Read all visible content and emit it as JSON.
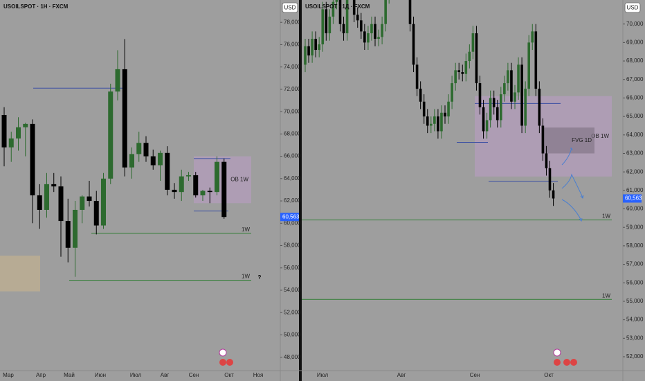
{
  "chart_data": [
    {
      "type": "candlestick",
      "title": "USOILSPOT · 1Н · FXCM",
      "currency": "USD",
      "xlabels": [
        "Мар",
        "Апр",
        "Май",
        "Июн",
        "Июл",
        "Авг",
        "Сен",
        "Окт",
        "Ноя"
      ],
      "open": [
        69.7,
        66.8,
        67.6,
        68.6,
        68.9,
        62.5,
        61.2,
        63.5,
        63.3,
        60.2,
        57.8,
        61.2,
        62.4,
        62.0,
        59.8,
        64.0,
        71.8,
        73.8,
        65.0,
        66.2,
        67.2,
        66.0,
        65.2,
        66.3,
        63.0,
        62.8,
        64.2,
        64.3,
        62.5,
        62.9,
        62.8,
        65.5
      ],
      "high": [
        70.4,
        68.2,
        69.5,
        69.0,
        69.3,
        63.5,
        64.5,
        64.5,
        64.2,
        62.2,
        62.0,
        62.5,
        63.8,
        62.9,
        64.5,
        72.5,
        75.5,
        76.5,
        66.8,
        68.2,
        67.8,
        66.6,
        66.5,
        66.9,
        63.6,
        64.8,
        64.6,
        64.6,
        63.0,
        63.2,
        66.0,
        65.8
      ],
      "low": [
        65.1,
        65.5,
        66.5,
        66.0,
        60.0,
        59.5,
        60.5,
        62.8,
        57.0,
        56.5,
        55.2,
        60.0,
        61.5,
        59.0,
        59.5,
        63.5,
        71.0,
        64.2,
        64.0,
        65.5,
        65.5,
        64.8,
        63.8,
        62.5,
        62.2,
        62.0,
        63.8,
        62.3,
        62.0,
        61.8,
        62.5,
        60.4
      ],
      "close": [
        66.8,
        67.6,
        68.6,
        68.9,
        62.5,
        61.2,
        63.5,
        63.3,
        60.2,
        57.8,
        61.2,
        62.4,
        62.0,
        59.8,
        64.0,
        71.8,
        73.8,
        65.0,
        66.2,
        67.2,
        66.0,
        65.2,
        66.3,
        63.0,
        62.8,
        64.2,
        64.3,
        62.5,
        62.9,
        62.8,
        65.5,
        60.563
      ],
      "up_color": "#2d6a2f",
      "down_color": "#000000",
      "ylim": [
        46.8,
        80
      ],
      "yticks": [
        {
          "value": 48,
          "label": "48,000"
        },
        {
          "value": 50,
          "label": "50,000"
        },
        {
          "value": 52,
          "label": "52,000"
        },
        {
          "value": 54,
          "label": "54,000"
        },
        {
          "value": 56,
          "label": "56,000"
        },
        {
          "value": 58,
          "label": "58,000"
        },
        {
          "value": 60,
          "label": "60,000"
        },
        {
          "value": 62,
          "label": "62,000"
        },
        {
          "value": 64,
          "label": "64,000"
        },
        {
          "value": 66,
          "label": "66,000"
        },
        {
          "value": 68,
          "label": "68,000"
        },
        {
          "value": 70,
          "label": "70,000"
        },
        {
          "value": 72,
          "label": "72,000"
        },
        {
          "value": 74,
          "label": "74,000"
        },
        {
          "value": 76,
          "label": "76,000"
        },
        {
          "value": 78,
          "label": "78,000"
        }
      ],
      "last_price": {
        "value": 60.563,
        "label": "60,563"
      },
      "levels": [
        {
          "value": 72.1,
          "color": "#3b4fa3"
        },
        {
          "value": 65.8,
          "color": "#3b4fa3"
        },
        {
          "value": 61.1,
          "color": "#3b4fa3"
        },
        {
          "value": 59.1,
          "color": "#2e7d32",
          "label": "1W"
        },
        {
          "value": 54.9,
          "color": "#2e7d32",
          "label": "1W"
        }
      ],
      "zones": [
        {
          "top": 66.0,
          "bottom": 61.8,
          "color": "#b99cc3",
          "label": "OB 1W"
        },
        {
          "top": 57.1,
          "bottom": 53.9,
          "color": "#c8b48e"
        }
      ],
      "annotation": "?"
    },
    {
      "type": "candlestick",
      "title": "USOILSPOT · 1Д · FXCM",
      "currency": "USD",
      "xlabels": [
        "Июл",
        "Авг",
        "Сен",
        "Окт"
      ],
      "open": [
        67.8,
        68.8,
        68.3,
        69.2,
        68.6,
        68.9,
        70.8,
        69.5,
        70.4,
        71.2,
        72.0,
        70.0,
        69.5,
        71.8,
        72.6,
        70.5,
        70.2,
        69.6,
        69.0,
        69.5,
        70.0,
        69.2,
        69.3,
        70.0,
        71.5,
        72.0,
        75.0,
        76.0,
        77.2,
        76.5,
        73.0,
        70.0,
        67.8,
        66.5,
        65.8,
        65.0,
        64.5,
        64.6,
        65.0,
        64.2,
        65.2,
        65.0,
        65.8,
        66.8,
        67.5,
        67.4,
        67.3,
        68.0,
        68.5,
        69.5,
        66.8,
        65.5,
        64.2,
        64.8,
        66.0,
        65.5,
        64.8,
        66.2,
        66.8,
        67.5,
        65.8,
        66.3,
        67.8,
        64.5,
        66.5,
        69.0,
        69.6,
        66.5,
        64.5,
        63.0,
        62.2,
        61.0
      ],
      "high": [
        69.2,
        69.2,
        69.6,
        69.6,
        69.3,
        71.2,
        71.2,
        70.8,
        71.6,
        72.4,
        72.4,
        70.4,
        72.2,
        73.0,
        73.0,
        70.9,
        70.6,
        70.0,
        69.9,
        70.4,
        70.4,
        69.7,
        70.4,
        71.9,
        72.4,
        75.4,
        76.4,
        77.6,
        77.6,
        76.9,
        73.4,
        70.4,
        68.2,
        66.9,
        66.2,
        65.4,
        65.0,
        65.4,
        65.4,
        65.6,
        65.6,
        66.2,
        67.2,
        67.9,
        67.9,
        67.8,
        68.4,
        68.9,
        69.9,
        69.9,
        67.2,
        65.9,
        65.2,
        66.4,
        66.4,
        65.9,
        66.6,
        67.2,
        67.9,
        67.9,
        66.7,
        68.2,
        68.2,
        66.9,
        69.4,
        70.0,
        70.0,
        66.9,
        64.9,
        63.4,
        62.6,
        61.4
      ],
      "low": [
        67.4,
        67.9,
        67.9,
        68.2,
        68.2,
        68.5,
        69.1,
        69.1,
        70.0,
        70.8,
        69.6,
        69.1,
        69.1,
        71.4,
        70.1,
        69.8,
        69.2,
        68.6,
        68.6,
        69.1,
        68.8,
        68.8,
        68.9,
        69.6,
        71.1,
        71.6,
        74.6,
        75.6,
        76.1,
        72.6,
        69.6,
        67.4,
        66.1,
        65.4,
        64.6,
        64.1,
        64.1,
        64.2,
        63.8,
        63.8,
        64.6,
        64.6,
        65.4,
        66.4,
        67.0,
        66.9,
        66.9,
        67.6,
        68.1,
        66.4,
        65.1,
        63.8,
        63.8,
        64.4,
        65.1,
        64.4,
        64.4,
        65.8,
        66.4,
        65.4,
        65.4,
        65.9,
        64.1,
        64.1,
        66.1,
        68.6,
        66.1,
        64.1,
        62.6,
        61.8,
        60.6,
        60.16
      ],
      "close": [
        68.8,
        68.3,
        69.2,
        68.6,
        68.9,
        70.8,
        69.5,
        70.4,
        71.2,
        72.0,
        70.0,
        69.5,
        71.8,
        72.6,
        70.5,
        70.2,
        69.6,
        69.0,
        69.5,
        70.0,
        69.2,
        69.3,
        70.0,
        71.5,
        72.0,
        75.0,
        76.0,
        77.2,
        76.5,
        73.0,
        70.0,
        67.8,
        66.5,
        65.8,
        65.0,
        64.5,
        64.6,
        65.0,
        64.2,
        65.2,
        65.0,
        65.8,
        66.8,
        67.5,
        67.4,
        67.3,
        68.0,
        68.5,
        69.5,
        66.8,
        65.5,
        64.2,
        64.8,
        66.0,
        65.5,
        64.8,
        66.2,
        66.8,
        67.5,
        65.8,
        66.3,
        67.8,
        64.5,
        66.5,
        69.0,
        69.6,
        66.5,
        64.5,
        63.0,
        62.2,
        61.0,
        60.563
      ],
      "up_color": "#2d6a2f",
      "down_color": "#000000",
      "ylim": [
        51.25,
        71.3
      ],
      "yticks": [
        {
          "value": 52,
          "label": "52,000"
        },
        {
          "value": 53,
          "label": "53,000"
        },
        {
          "value": 54,
          "label": "54,000"
        },
        {
          "value": 55,
          "label": "55,000"
        },
        {
          "value": 56,
          "label": "56,000"
        },
        {
          "value": 57,
          "label": "57,000"
        },
        {
          "value": 58,
          "label": "58,000"
        },
        {
          "value": 59,
          "label": "59,000"
        },
        {
          "value": 60,
          "label": "60,000"
        },
        {
          "value": 61,
          "label": "61,000"
        },
        {
          "value": 62,
          "label": "62,000"
        },
        {
          "value": 63,
          "label": "63,000"
        },
        {
          "value": 64,
          "label": "64,000"
        },
        {
          "value": 65,
          "label": "65,000"
        },
        {
          "value": 66,
          "label": "66,000"
        },
        {
          "value": 67,
          "label": "67,000"
        },
        {
          "value": 68,
          "label": "68,000"
        },
        {
          "value": 69,
          "label": "69,000"
        },
        {
          "value": 70,
          "label": "70,000"
        }
      ],
      "last_price": {
        "value": 60.563,
        "label": "60,563"
      },
      "levels": [
        {
          "value": 65.7,
          "color": "#3b4fa3"
        },
        {
          "value": 63.6,
          "color": "#3b4fa3"
        },
        {
          "value": 61.5,
          "color": "#3b4fa3"
        },
        {
          "value": 59.4,
          "color": "#2e7d32",
          "label": "1W"
        },
        {
          "value": 55.1,
          "color": "#2e7d32",
          "label": "1W"
        }
      ],
      "zones": [
        {
          "top": 66.1,
          "bottom": 61.75,
          "color": "#b99cc3",
          "label": "OB 1W"
        },
        {
          "top": 64.4,
          "bottom": 63.0,
          "color": "#7b6f80",
          "label": "FVG 1D"
        }
      ]
    }
  ]
}
